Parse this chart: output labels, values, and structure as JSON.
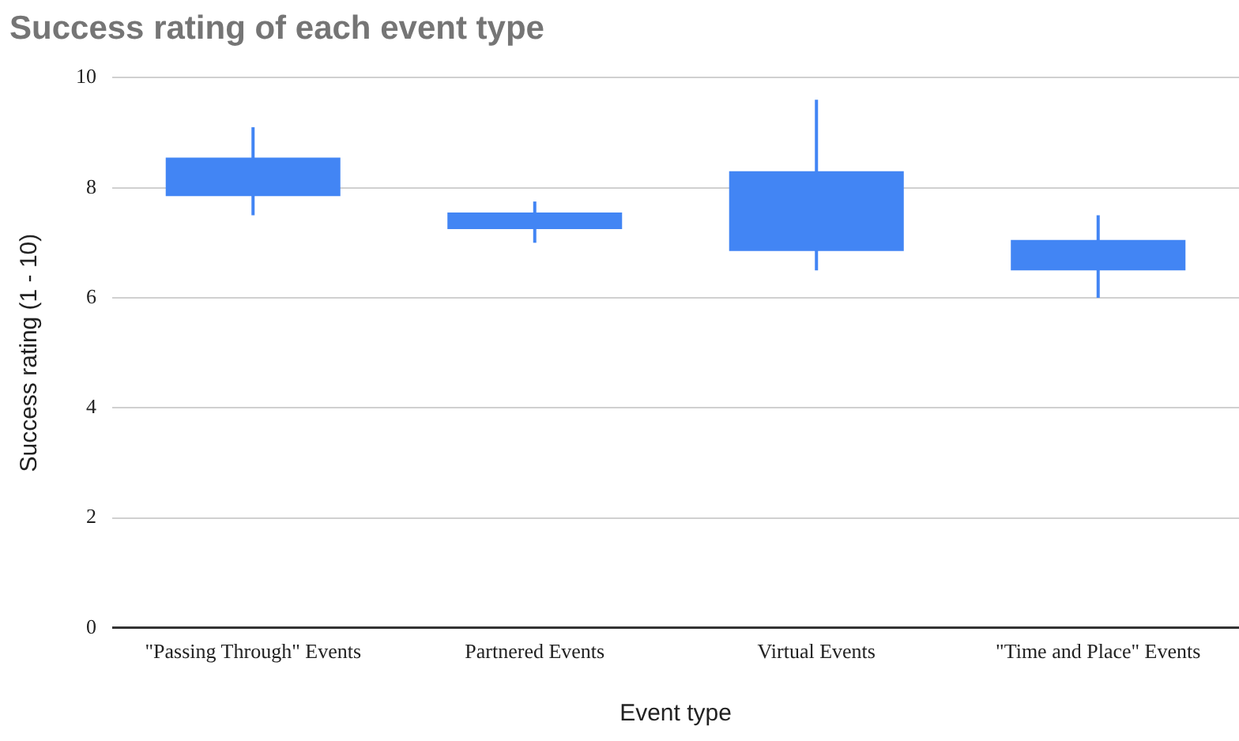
{
  "chart_data": {
    "type": "candlestick",
    "title": "Success rating of each event type",
    "xlabel": "Event type",
    "ylabel": "Success rating (1 - 10)",
    "categories": [
      "\"Passing Through\" Events",
      "Partnered Events",
      "Virtual Events",
      "\"Time and Place\" Events"
    ],
    "ohlc": [
      [
        7.85,
        9.1,
        7.5,
        8.55
      ],
      [
        7.25,
        7.75,
        7.0,
        7.55
      ],
      [
        6.85,
        9.6,
        6.5,
        8.3
      ],
      [
        6.5,
        7.5,
        6.0,
        7.05
      ]
    ],
    "color": "#4285f4",
    "ylim": [
      0,
      10
    ],
    "yticks": [
      0,
      2,
      4,
      6,
      8,
      10
    ],
    "grid": "y"
  }
}
